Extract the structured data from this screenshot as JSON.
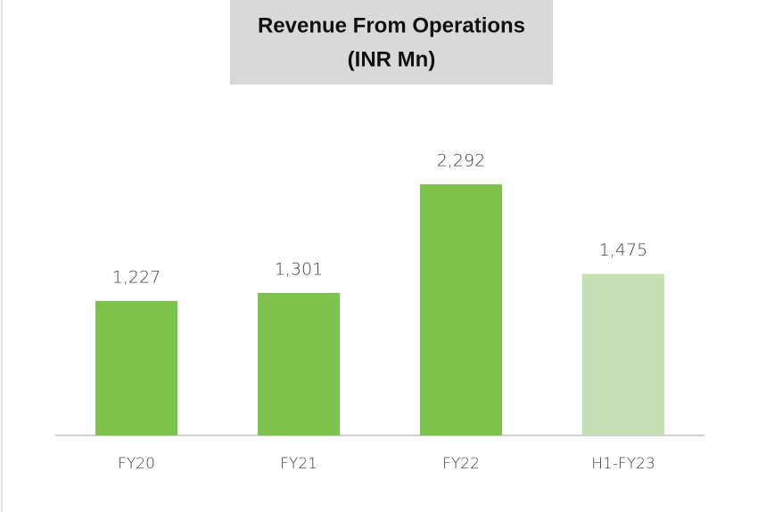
{
  "chart_data": {
    "type": "bar",
    "title": "Revenue From Operations",
    "subtitle": "(INR Mn)",
    "categories": [
      "FY20",
      "FY21",
      "FY22",
      "H1-FY23"
    ],
    "values": [
      1227,
      1301,
      2292,
      1475
    ],
    "value_labels": [
      "1,227",
      "1,301",
      "2,292",
      "1,475"
    ],
    "colors": [
      "#7dc24b",
      "#7dc24b",
      "#7dc24b",
      "#c5e0b4"
    ]
  }
}
